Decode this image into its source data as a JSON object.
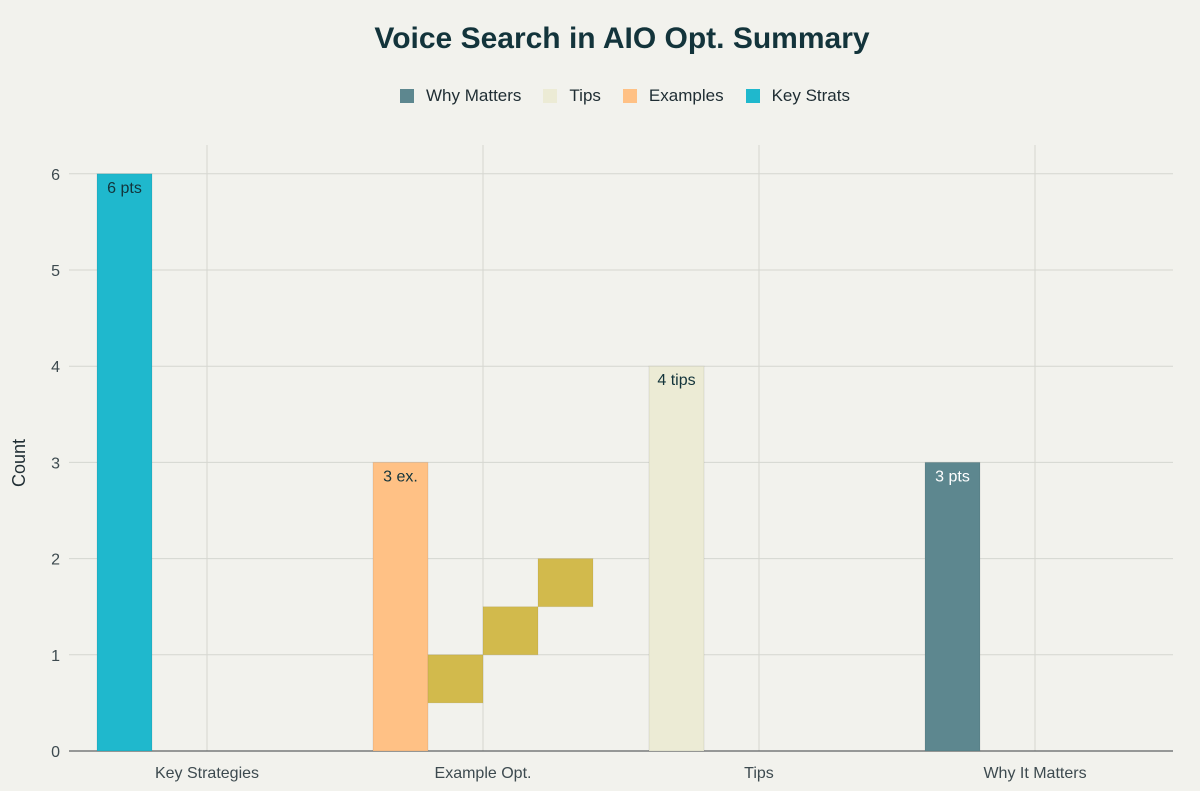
{
  "chart_data": {
    "type": "bar",
    "title": "Voice Search in AIO Opt. Summary",
    "xlabel": "",
    "ylabel": "Count",
    "ylim": [
      0,
      6.3
    ],
    "yticks": [
      0,
      1,
      2,
      3,
      4,
      5,
      6
    ],
    "grid": true,
    "legend_position": "top",
    "categories": [
      "Key Strategies",
      "Example Opt.",
      "Tips",
      "Why It Matters"
    ],
    "legend": [
      {
        "name": "Why Matters",
        "color": "#5d878f"
      },
      {
        "name": "Tips",
        "color": "#ecebd5"
      },
      {
        "name": "Examples",
        "color": "#ffc185"
      },
      {
        "name": "Key Strats",
        "color": "#1fb8cd"
      }
    ],
    "bars": [
      {
        "category": "Key Strategies",
        "series": "Key Strats",
        "value": 6,
        "label": "6 pts",
        "color": "#1fb8cd",
        "label_color": "#13343b"
      },
      {
        "category": "Example Opt.",
        "series": "Examples",
        "value": 3,
        "label": "3 ex.",
        "color": "#ffc185",
        "label_color": "#13343b"
      },
      {
        "category": "Tips",
        "series": "Tips",
        "value": 4,
        "label": "4 tips",
        "color": "#ecebd5",
        "label_color": "#13343b"
      },
      {
        "category": "Why It Matters",
        "series": "Why Matters",
        "value": 3,
        "label": "3 pts",
        "color": "#5d878f",
        "label_color": "#ffffff"
      }
    ],
    "steps": [
      {
        "category": "Example Opt.",
        "base": 0.5,
        "top": 1.0,
        "color": "#d2ba4c"
      },
      {
        "category": "Example Opt.",
        "base": 1.0,
        "top": 1.5,
        "color": "#d2ba4c"
      },
      {
        "category": "Example Opt.",
        "base": 1.5,
        "top": 2.0,
        "color": "#d2ba4c"
      }
    ]
  }
}
